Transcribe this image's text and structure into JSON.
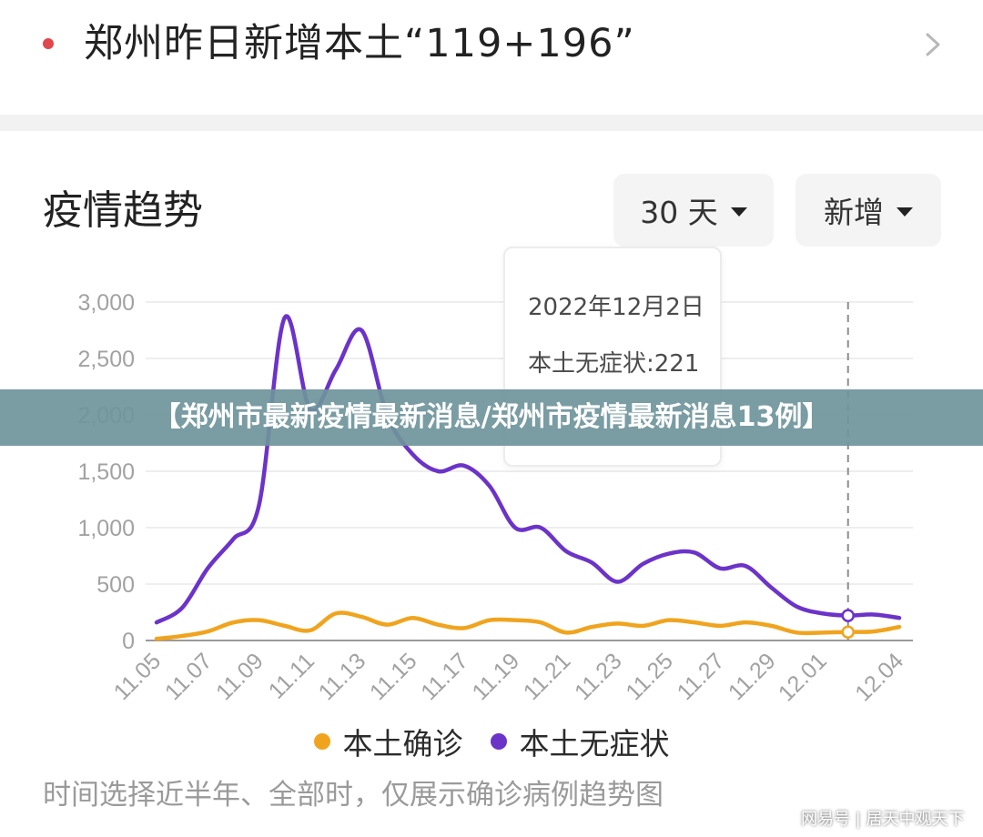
{
  "news": {
    "title": "郑州昨日新增本土“119+196”"
  },
  "trend": {
    "title": "疫情趋势",
    "range_label": "30 天",
    "metric_label": "新增"
  },
  "tooltip": {
    "date": "2022年12月2日",
    "value_text": "本土无症状:221"
  },
  "banner": "【郑州市最新疫情最新消息/郑州市疫情最新消息13例】",
  "note": "时间选择近半年、全部时，仅展示确诊病例趋势图",
  "watermark": "网易号 | 居天中观天下",
  "colors": {
    "confirmed": "#f0a41e",
    "asymptomatic": "#6c33c9",
    "accent_red": "#e0464b"
  },
  "chart_data": {
    "type": "line",
    "x": [
      "11.05",
      "11.06",
      "11.07",
      "11.08",
      "11.09",
      "11.10",
      "11.11",
      "11.12",
      "11.13",
      "11.14",
      "11.15",
      "11.16",
      "11.17",
      "11.18",
      "11.19",
      "11.20",
      "11.21",
      "11.22",
      "11.23",
      "11.24",
      "11.25",
      "11.26",
      "11.27",
      "11.28",
      "11.29",
      "11.30",
      "12.01",
      "12.02",
      "12.03",
      "12.04"
    ],
    "x_tick_labels": [
      "11.05",
      "11.07",
      "11.09",
      "11.11",
      "11.13",
      "11.15",
      "11.17",
      "11.19",
      "11.21",
      "11.23",
      "11.25",
      "11.27",
      "11.29",
      "12.01",
      "12.04"
    ],
    "y_tick_labels": [
      "0",
      "500",
      "1,000",
      "1,500",
      "2,000",
      "2,500",
      "3,000"
    ],
    "ylim": [
      0,
      3000
    ],
    "series": [
      {
        "name": "本土确诊",
        "values": [
          15,
          40,
          80,
          160,
          180,
          130,
          90,
          240,
          210,
          140,
          200,
          140,
          110,
          180,
          180,
          160,
          70,
          120,
          150,
          130,
          180,
          160,
          130,
          160,
          130,
          70,
          70,
          75,
          80,
          120
        ]
      },
      {
        "name": "本土无症状",
        "values": [
          160,
          290,
          640,
          900,
          1200,
          2860,
          2050,
          2400,
          2750,
          2000,
          1650,
          1500,
          1550,
          1370,
          1000,
          1000,
          790,
          690,
          520,
          680,
          770,
          780,
          640,
          660,
          470,
          300,
          240,
          221,
          230,
          200
        ]
      }
    ],
    "highlight_index": 27,
    "legend_position": "bottom",
    "grid": true
  }
}
